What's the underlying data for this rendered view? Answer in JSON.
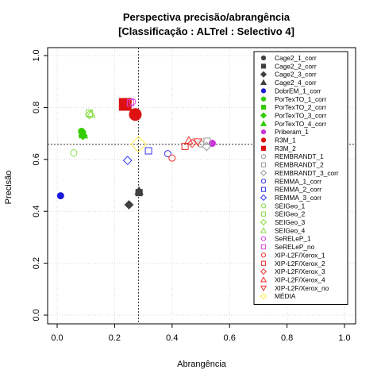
{
  "chart_data": {
    "type": "scatter",
    "title": "Perspectiva precisão/abrangência",
    "subtitle": "[Classificação : ALTrel : Selectivo 4]",
    "xlabel": "Abrangência",
    "ylabel": "Precisão",
    "xlim": [
      0,
      1
    ],
    "ylim": [
      0,
      1
    ],
    "x_ticks": [
      "0.0",
      "0.2",
      "0.4",
      "0.6",
      "0.8",
      "1.0"
    ],
    "y_ticks": [
      "0.0",
      "0.2",
      "0.4",
      "0.6",
      "0.8",
      "1.0"
    ],
    "grid": true,
    "legend_position": "right",
    "reference_lines": {
      "x": 0.283,
      "y": 0.658
    },
    "series": [
      {
        "name": "Cage2_1_corr",
        "color": "#404040",
        "marker": "circle",
        "filled": true,
        "points": [
          [
            0.285,
            0.475
          ]
        ]
      },
      {
        "name": "Cage2_2_corr",
        "color": "#404040",
        "marker": "square",
        "filled": true,
        "points": [
          [
            0.285,
            0.472
          ]
        ]
      },
      {
        "name": "Cage2_3_corr",
        "color": "#404040",
        "marker": "diamond",
        "filled": true,
        "points": [
          [
            0.25,
            0.425
          ]
        ]
      },
      {
        "name": "Cage2_4_corr",
        "color": "#404040",
        "marker": "triangle",
        "filled": true,
        "points": [
          [
            0.285,
            0.478
          ]
        ]
      },
      {
        "name": "DobrEM_1_corr",
        "color": "#1a1adc",
        "marker": "circle",
        "filled": true,
        "points": [
          [
            0.012,
            0.46
          ]
        ]
      },
      {
        "name": "PorTexTO_1_corr",
        "color": "#33cc00",
        "marker": "circle",
        "filled": true,
        "points": [
          [
            0.085,
            0.708
          ]
        ]
      },
      {
        "name": "PorTexTO_2_corr",
        "color": "#33cc00",
        "marker": "square",
        "filled": true,
        "points": [
          [
            0.088,
            0.697
          ]
        ]
      },
      {
        "name": "PorTexTO_3_corr",
        "color": "#33cc00",
        "marker": "diamond",
        "filled": true,
        "points": [
          [
            0.09,
            0.692
          ]
        ]
      },
      {
        "name": "PorTexTO_4_corr",
        "color": "#33cc00",
        "marker": "triangle",
        "filled": true,
        "points": [
          [
            0.092,
            0.695
          ]
        ]
      },
      {
        "name": "Priberam_1",
        "color": "#cc33dd",
        "marker": "circle",
        "filled": true,
        "points": [
          [
            0.54,
            0.662
          ]
        ]
      },
      {
        "name": "R3M_1",
        "color": "#dd1111",
        "marker": "circle",
        "filled": true,
        "big": true,
        "points": [
          [
            0.272,
            0.773
          ]
        ]
      },
      {
        "name": "R3M_2",
        "color": "#dd1111",
        "marker": "square",
        "filled": true,
        "big": true,
        "points": [
          [
            0.237,
            0.812
          ]
        ]
      },
      {
        "name": "REMBRANDT_1",
        "color": "#999999",
        "marker": "circle",
        "filled": false,
        "points": [
          [
            0.5,
            0.66
          ]
        ]
      },
      {
        "name": "REMBRANDT_2",
        "color": "#999999",
        "marker": "square",
        "filled": false,
        "points": [
          [
            0.522,
            0.67
          ]
        ]
      },
      {
        "name": "REMBRANDT_3_corr",
        "color": "#999999",
        "marker": "diamond",
        "filled": false,
        "points": [
          [
            0.52,
            0.65
          ]
        ]
      },
      {
        "name": "REMMA_1_corr",
        "color": "#3333ee",
        "marker": "circle",
        "filled": false,
        "points": [
          [
            0.385,
            0.622
          ]
        ]
      },
      {
        "name": "REMMA_2_corr",
        "color": "#3333ee",
        "marker": "square",
        "filled": false,
        "points": [
          [
            0.318,
            0.633
          ]
        ]
      },
      {
        "name": "REMMA_3_corr",
        "color": "#3333ee",
        "marker": "diamond",
        "filled": false,
        "points": [
          [
            0.245,
            0.596
          ]
        ]
      },
      {
        "name": "SEIGeo_1",
        "color": "#88dd44",
        "marker": "circle",
        "filled": false,
        "points": [
          [
            0.058,
            0.625
          ]
        ]
      },
      {
        "name": "SEIGeo_2",
        "color": "#88dd44",
        "marker": "square",
        "filled": false,
        "points": [
          [
            0.112,
            0.778
          ]
        ]
      },
      {
        "name": "SEIGeo_3",
        "color": "#88dd44",
        "marker": "diamond",
        "filled": false,
        "points": [
          [
            0.113,
            0.772
          ]
        ]
      },
      {
        "name": "SEIGeo_4",
        "color": "#88dd44",
        "marker": "triangle",
        "filled": false,
        "points": [
          [
            0.118,
            0.775
          ]
        ]
      },
      {
        "name": "SeRELeP_1",
        "color": "#dd44dd",
        "marker": "circle",
        "filled": false,
        "points": [
          [
            0.262,
            0.822
          ]
        ]
      },
      {
        "name": "SeRELeP_no",
        "color": "#dd44dd",
        "marker": "square",
        "filled": false,
        "points": [
          [
            0.255,
            0.818
          ]
        ]
      },
      {
        "name": "XIP-L2F/Xerox_1",
        "color": "#ee3333",
        "marker": "circle",
        "filled": false,
        "points": [
          [
            0.4,
            0.605
          ]
        ]
      },
      {
        "name": "XIP-L2F/Xerox_2",
        "color": "#ee3333",
        "marker": "square",
        "filled": false,
        "points": [
          [
            0.445,
            0.65
          ]
        ]
      },
      {
        "name": "XIP-L2F/Xerox_3",
        "color": "#ee3333",
        "marker": "diamond",
        "filled": false,
        "points": [
          [
            0.47,
            0.662
          ]
        ]
      },
      {
        "name": "XIP-L2F/Xerox_4",
        "color": "#ee3333",
        "marker": "triangle",
        "filled": false,
        "points": [
          [
            0.458,
            0.672
          ]
        ]
      },
      {
        "name": "XIP-L2F/Xerox_no",
        "color": "#ee3333",
        "marker": "triangle-down",
        "filled": false,
        "points": [
          [
            0.49,
            0.667
          ]
        ]
      },
      {
        "name": "MÉDIA",
        "color": "#ffee44",
        "marker": "diamond",
        "filled": false,
        "big": true,
        "points": [
          [
            0.283,
            0.658
          ]
        ]
      }
    ]
  }
}
